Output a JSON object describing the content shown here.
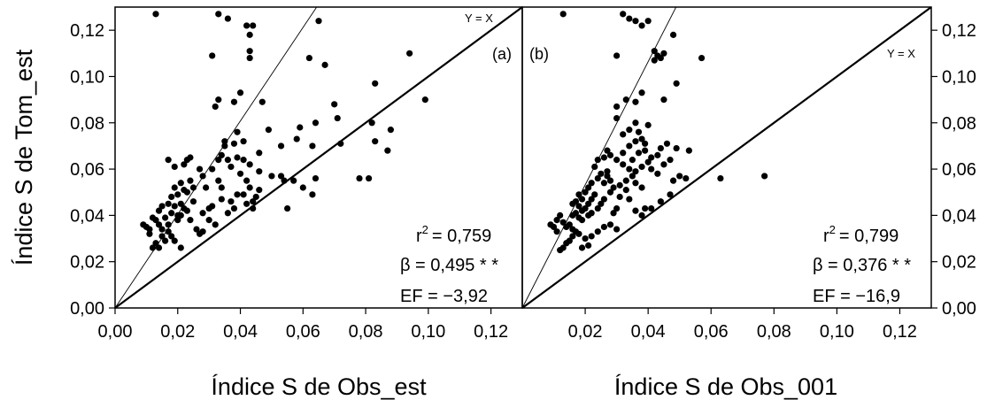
{
  "chart_data": [
    {
      "type": "scatter",
      "panel_label": "(a)",
      "xlabel": "Índice S de Obs_est",
      "ylabel": "Índice S de Tom_est",
      "xlim": [
        0,
        0.13
      ],
      "ylim": [
        0,
        0.13
      ],
      "x_tick_labels": [
        "0,00",
        "0,02",
        "0,04",
        "0,06",
        "0,08",
        "0,10",
        "0,12"
      ],
      "y_tick_labels": [
        "0,00",
        "0,02",
        "0,04",
        "0,06",
        "0,08",
        "0,10",
        "0,12"
      ],
      "lines": [
        {
          "label": "Y = X",
          "slope": 1
        },
        {
          "label": "",
          "slope": 2.02
        }
      ],
      "stats": {
        "r2_label": "r",
        "r2_value": "= 0,759",
        "beta": "β = 0,495 * *",
        "ef": "EF = −3,92"
      },
      "points": [
        [
          0.013,
          0.127
        ],
        [
          0.033,
          0.127
        ],
        [
          0.036,
          0.125
        ],
        [
          0.042,
          0.122
        ],
        [
          0.044,
          0.122
        ],
        [
          0.043,
          0.118
        ],
        [
          0.043,
          0.111
        ],
        [
          0.043,
          0.108
        ],
        [
          0.031,
          0.109
        ],
        [
          0.065,
          0.124
        ],
        [
          0.062,
          0.108
        ],
        [
          0.067,
          0.105
        ],
        [
          0.094,
          0.11
        ],
        [
          0.099,
          0.09
        ],
        [
          0.083,
          0.097
        ],
        [
          0.04,
          0.093
        ],
        [
          0.038,
          0.089
        ],
        [
          0.047,
          0.089
        ],
        [
          0.033,
          0.09
        ],
        [
          0.032,
          0.087
        ],
        [
          0.07,
          0.088
        ],
        [
          0.071,
          0.082
        ],
        [
          0.082,
          0.08
        ],
        [
          0.088,
          0.077
        ],
        [
          0.064,
          0.08
        ],
        [
          0.059,
          0.078
        ],
        [
          0.049,
          0.077
        ],
        [
          0.039,
          0.076
        ],
        [
          0.035,
          0.072
        ],
        [
          0.035,
          0.07
        ],
        [
          0.038,
          0.071
        ],
        [
          0.041,
          0.072
        ],
        [
          0.046,
          0.067
        ],
        [
          0.053,
          0.07
        ],
        [
          0.058,
          0.073
        ],
        [
          0.063,
          0.07
        ],
        [
          0.072,
          0.071
        ],
        [
          0.083,
          0.072
        ],
        [
          0.087,
          0.068
        ],
        [
          0.078,
          0.056
        ],
        [
          0.081,
          0.056
        ],
        [
          0.064,
          0.056
        ],
        [
          0.06,
          0.052
        ],
        [
          0.063,
          0.049
        ],
        [
          0.057,
          0.055
        ],
        [
          0.054,
          0.055
        ],
        [
          0.053,
          0.057
        ],
        [
          0.05,
          0.057
        ],
        [
          0.055,
          0.043
        ],
        [
          0.046,
          0.059
        ],
        [
          0.043,
          0.062
        ],
        [
          0.041,
          0.064
        ],
        [
          0.039,
          0.065
        ],
        [
          0.036,
          0.064
        ],
        [
          0.033,
          0.064
        ],
        [
          0.034,
          0.066
        ],
        [
          0.037,
          0.061
        ],
        [
          0.04,
          0.058
        ],
        [
          0.042,
          0.055
        ],
        [
          0.043,
          0.052
        ],
        [
          0.041,
          0.049
        ],
        [
          0.044,
          0.046
        ],
        [
          0.042,
          0.045
        ],
        [
          0.044,
          0.043
        ],
        [
          0.046,
          0.051
        ],
        [
          0.045,
          0.048
        ],
        [
          0.039,
          0.049
        ],
        [
          0.037,
          0.046
        ],
        [
          0.038,
          0.043
        ],
        [
          0.036,
          0.041
        ],
        [
          0.034,
          0.047
        ],
        [
          0.031,
          0.044
        ],
        [
          0.03,
          0.043
        ],
        [
          0.028,
          0.041
        ],
        [
          0.03,
          0.038
        ],
        [
          0.032,
          0.036
        ],
        [
          0.028,
          0.033
        ],
        [
          0.027,
          0.032
        ],
        [
          0.029,
          0.052
        ],
        [
          0.028,
          0.057
        ],
        [
          0.027,
          0.06
        ],
        [
          0.031,
          0.06
        ],
        [
          0.033,
          0.055
        ],
        [
          0.034,
          0.052
        ],
        [
          0.023,
          0.064
        ],
        [
          0.022,
          0.062
        ],
        [
          0.024,
          0.065
        ],
        [
          0.017,
          0.064
        ],
        [
          0.019,
          0.061
        ],
        [
          0.021,
          0.054
        ],
        [
          0.022,
          0.051
        ],
        [
          0.023,
          0.05
        ],
        [
          0.02,
          0.049
        ],
        [
          0.019,
          0.052
        ],
        [
          0.018,
          0.048
        ],
        [
          0.017,
          0.045
        ],
        [
          0.019,
          0.044
        ],
        [
          0.021,
          0.045
        ],
        [
          0.022,
          0.043
        ],
        [
          0.023,
          0.042
        ],
        [
          0.018,
          0.041
        ],
        [
          0.02,
          0.04
        ],
        [
          0.021,
          0.04
        ],
        [
          0.02,
          0.038
        ],
        [
          0.024,
          0.038
        ],
        [
          0.026,
          0.034
        ],
        [
          0.016,
          0.039
        ],
        [
          0.014,
          0.036
        ],
        [
          0.013,
          0.038
        ],
        [
          0.015,
          0.034
        ],
        [
          0.017,
          0.033
        ],
        [
          0.018,
          0.031
        ],
        [
          0.015,
          0.031
        ],
        [
          0.016,
          0.029
        ],
        [
          0.013,
          0.028
        ],
        [
          0.012,
          0.026
        ],
        [
          0.014,
          0.026
        ],
        [
          0.01,
          0.035
        ],
        [
          0.011,
          0.034
        ],
        [
          0.012,
          0.039
        ],
        [
          0.009,
          0.036
        ],
        [
          0.011,
          0.032
        ],
        [
          0.019,
          0.029
        ],
        [
          0.021,
          0.026
        ],
        [
          0.014,
          0.042
        ],
        [
          0.015,
          0.044
        ],
        [
          0.017,
          0.036
        ],
        [
          0.025,
          0.046
        ],
        [
          0.025,
          0.052
        ],
        [
          0.024,
          0.055
        ]
      ]
    },
    {
      "type": "scatter",
      "panel_label": "(b)",
      "xlabel": "Índice S de Obs_001",
      "ylabel": "",
      "xlim": [
        0,
        0.13
      ],
      "ylim": [
        0,
        0.13
      ],
      "x_tick_labels": [
        "0,02",
        "0,04",
        "0,06",
        "0,08",
        "0,10",
        "0,12"
      ],
      "y_tick_labels": [
        "0,00",
        "0,02",
        "0,04",
        "0,06",
        "0,08",
        "0,10",
        "0,12"
      ],
      "lines": [
        {
          "label": "Y = X",
          "slope": 1
        },
        {
          "label": "",
          "slope": 2.66
        }
      ],
      "stats": {
        "r2_label": "r",
        "r2_value": "= 0,799",
        "beta": "β = 0,376 * *",
        "ef": "EF = −16,9"
      },
      "points": [
        [
          0.013,
          0.127
        ],
        [
          0.032,
          0.127
        ],
        [
          0.034,
          0.125
        ],
        [
          0.036,
          0.124
        ],
        [
          0.038,
          0.122
        ],
        [
          0.04,
          0.124
        ],
        [
          0.042,
          0.111
        ],
        [
          0.043,
          0.109
        ],
        [
          0.042,
          0.107
        ],
        [
          0.044,
          0.108
        ],
        [
          0.045,
          0.11
        ],
        [
          0.048,
          0.118
        ],
        [
          0.03,
          0.109
        ],
        [
          0.057,
          0.108
        ],
        [
          0.049,
          0.097
        ],
        [
          0.045,
          0.09
        ],
        [
          0.038,
          0.093
        ],
        [
          0.036,
          0.089
        ],
        [
          0.033,
          0.09
        ],
        [
          0.03,
          0.087
        ],
        [
          0.03,
          0.082
        ],
        [
          0.036,
          0.08
        ],
        [
          0.04,
          0.079
        ],
        [
          0.032,
          0.075
        ],
        [
          0.034,
          0.077
        ],
        [
          0.037,
          0.076
        ],
        [
          0.038,
          0.073
        ],
        [
          0.039,
          0.071
        ],
        [
          0.036,
          0.072
        ],
        [
          0.034,
          0.07
        ],
        [
          0.032,
          0.067
        ],
        [
          0.03,
          0.064
        ],
        [
          0.028,
          0.066
        ],
        [
          0.027,
          0.068
        ],
        [
          0.026,
          0.065
        ],
        [
          0.024,
          0.064
        ],
        [
          0.023,
          0.061
        ],
        [
          0.025,
          0.058
        ],
        [
          0.027,
          0.057
        ],
        [
          0.028,
          0.055
        ],
        [
          0.026,
          0.054
        ],
        [
          0.024,
          0.056
        ],
        [
          0.022,
          0.054
        ],
        [
          0.021,
          0.052
        ],
        [
          0.02,
          0.05
        ],
        [
          0.018,
          0.049
        ],
        [
          0.019,
          0.047
        ],
        [
          0.017,
          0.046
        ],
        [
          0.016,
          0.045
        ],
        [
          0.018,
          0.044
        ],
        [
          0.02,
          0.043
        ],
        [
          0.021,
          0.045
        ],
        [
          0.022,
          0.047
        ],
        [
          0.023,
          0.049
        ],
        [
          0.019,
          0.042
        ],
        [
          0.017,
          0.041
        ],
        [
          0.016,
          0.04
        ],
        [
          0.018,
          0.039
        ],
        [
          0.019,
          0.038
        ],
        [
          0.021,
          0.04
        ],
        [
          0.022,
          0.041
        ],
        [
          0.024,
          0.043
        ],
        [
          0.025,
          0.045
        ],
        [
          0.026,
          0.047
        ],
        [
          0.028,
          0.05
        ],
        [
          0.029,
          0.052
        ],
        [
          0.031,
          0.053
        ],
        [
          0.033,
          0.055
        ],
        [
          0.035,
          0.057
        ],
        [
          0.036,
          0.059
        ],
        [
          0.038,
          0.061
        ],
        [
          0.04,
          0.063
        ],
        [
          0.041,
          0.065
        ],
        [
          0.043,
          0.066
        ],
        [
          0.044,
          0.069
        ],
        [
          0.046,
          0.071
        ],
        [
          0.049,
          0.069
        ],
        [
          0.053,
          0.068
        ],
        [
          0.05,
          0.057
        ],
        [
          0.052,
          0.056
        ],
        [
          0.048,
          0.055
        ],
        [
          0.047,
          0.049
        ],
        [
          0.044,
          0.046
        ],
        [
          0.041,
          0.043
        ],
        [
          0.039,
          0.043
        ],
        [
          0.038,
          0.04
        ],
        [
          0.036,
          0.042
        ],
        [
          0.034,
          0.047
        ],
        [
          0.033,
          0.051
        ],
        [
          0.031,
          0.048
        ],
        [
          0.03,
          0.043
        ],
        [
          0.029,
          0.041
        ],
        [
          0.028,
          0.036
        ],
        [
          0.03,
          0.034
        ],
        [
          0.026,
          0.035
        ],
        [
          0.024,
          0.033
        ],
        [
          0.022,
          0.031
        ],
        [
          0.02,
          0.03
        ],
        [
          0.018,
          0.032
        ],
        [
          0.016,
          0.031
        ],
        [
          0.015,
          0.029
        ],
        [
          0.014,
          0.028
        ],
        [
          0.013,
          0.026
        ],
        [
          0.012,
          0.025
        ],
        [
          0.011,
          0.033
        ],
        [
          0.01,
          0.035
        ],
        [
          0.009,
          0.036
        ],
        [
          0.011,
          0.038
        ],
        [
          0.012,
          0.04
        ],
        [
          0.013,
          0.037
        ],
        [
          0.014,
          0.035
        ],
        [
          0.015,
          0.036
        ],
        [
          0.016,
          0.034
        ],
        [
          0.017,
          0.033
        ],
        [
          0.019,
          0.026
        ],
        [
          0.021,
          0.027
        ],
        [
          0.063,
          0.056
        ],
        [
          0.077,
          0.057
        ],
        [
          0.032,
          0.062
        ],
        [
          0.035,
          0.064
        ],
        [
          0.037,
          0.067
        ],
        [
          0.039,
          0.068
        ],
        [
          0.041,
          0.06
        ],
        [
          0.043,
          0.058
        ],
        [
          0.045,
          0.062
        ],
        [
          0.047,
          0.064
        ],
        [
          0.034,
          0.06
        ],
        [
          0.036,
          0.054
        ],
        [
          0.038,
          0.052
        ],
        [
          0.027,
          0.059
        ]
      ]
    }
  ]
}
